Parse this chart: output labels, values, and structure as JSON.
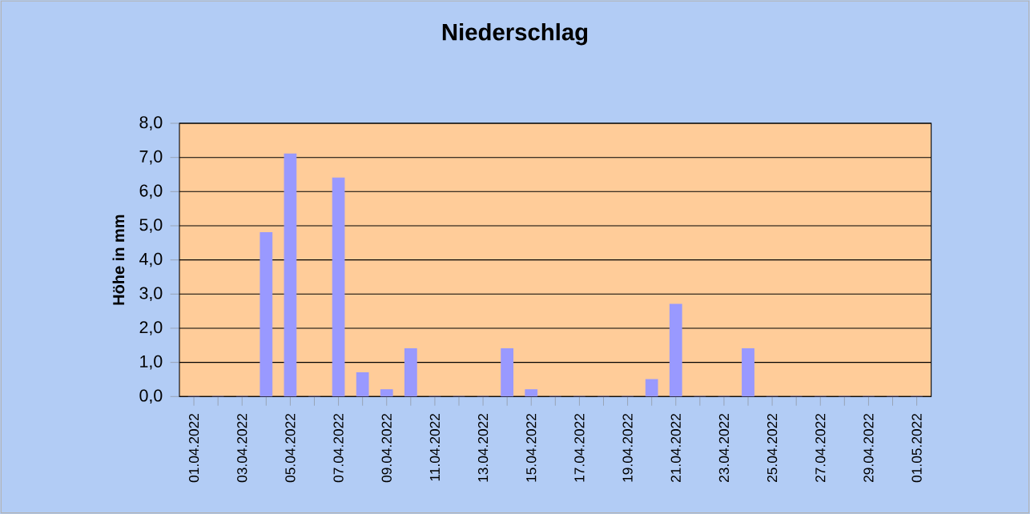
{
  "chart_data": {
    "type": "bar",
    "title": "Niederschlag",
    "ylabel": "Höhe in mm",
    "categories": [
      "01.04.2022",
      null,
      "03.04.2022",
      null,
      "05.04.2022",
      null,
      "07.04.2022",
      null,
      "09.04.2022",
      null,
      "11.04.2022",
      null,
      "13.04.2022",
      null,
      "15.04.2022",
      null,
      "17.04.2022",
      null,
      "19.04.2022",
      null,
      "21.04.2022",
      null,
      "23.04.2022",
      null,
      "25.04.2022",
      null,
      "27.04.2022",
      null,
      "29.04.2022",
      null,
      "01.05.2022"
    ],
    "values": [
      0,
      0,
      0,
      4.8,
      7.1,
      0,
      6.4,
      0.7,
      0.2,
      1.4,
      0,
      0,
      0,
      1.4,
      0.2,
      0,
      0,
      0,
      0,
      0.5,
      2.7,
      0,
      0,
      1.4,
      0,
      0,
      0,
      0,
      0,
      0,
      0
    ],
    "color": "#9999ff",
    "ylim": [
      0,
      8
    ],
    "yticks": [
      {
        "value": 0,
        "label": "0,0"
      },
      {
        "value": 1,
        "label": "1,0"
      },
      {
        "value": 2,
        "label": "2,0"
      },
      {
        "value": 3,
        "label": "3,0"
      },
      {
        "value": 4,
        "label": "4,0"
      },
      {
        "value": 5,
        "label": "5,0"
      },
      {
        "value": 6,
        "label": "6,0"
      },
      {
        "value": 7,
        "label": "7,0"
      },
      {
        "value": 8,
        "label": "8,0"
      }
    ],
    "grid": "y"
  }
}
